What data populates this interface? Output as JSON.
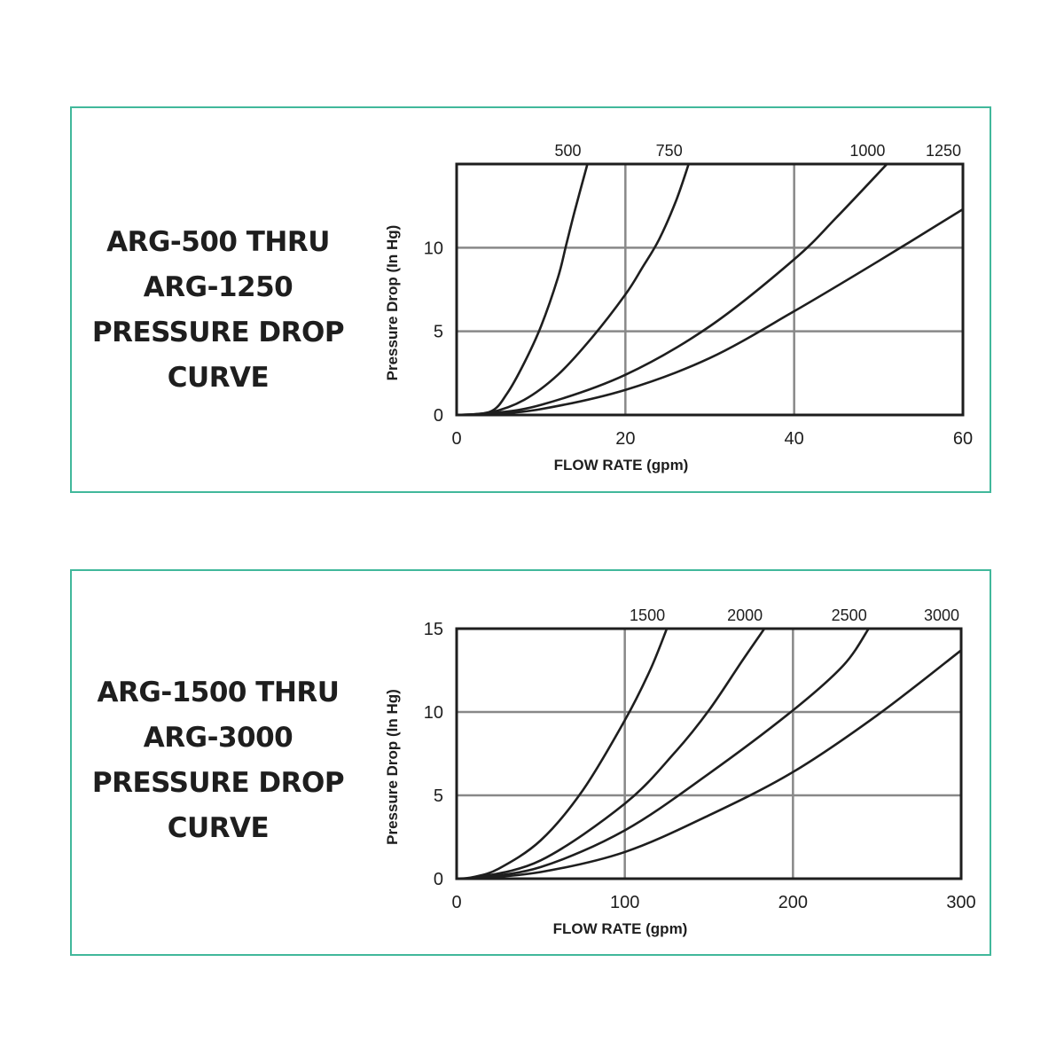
{
  "panels": [
    {
      "title_lines": [
        "ARG-500 THRU",
        "ARG-1250",
        "PRESSURE DROP",
        "CURVE"
      ],
      "accent_color": "#41b89b"
    },
    {
      "title_lines": [
        "ARG-1500 THRU",
        "ARG-3000",
        "PRESSURE DROP",
        "CURVE"
      ],
      "accent_color": "#41b89b"
    }
  ],
  "chart_data": [
    {
      "type": "line",
      "title": "ARG-500 THRU ARG-1250 PRESSURE DROP CURVE",
      "xlabel": "FLOW RATE (gpm)",
      "ylabel": "Pressure Drop (In Hg)",
      "xlim": [
        0,
        60
      ],
      "ylim": [
        0,
        15
      ],
      "xticks": [
        0,
        20,
        40,
        60
      ],
      "yticks": [
        0,
        5,
        10
      ],
      "grid": true,
      "series": [
        {
          "name": "500",
          "x": [
            0,
            4,
            6,
            8,
            10,
            12,
            13,
            14,
            15.5
          ],
          "y": [
            0,
            0.2,
            1.3,
            3.1,
            5.3,
            8.2,
            10.2,
            12.2,
            15
          ]
        },
        {
          "name": "750",
          "x": [
            0,
            4,
            8,
            12,
            16,
            20,
            22,
            24,
            26,
            27.5
          ],
          "y": [
            0,
            0.15,
            0.9,
            2.4,
            4.6,
            7.2,
            8.8,
            10.5,
            12.8,
            15
          ]
        },
        {
          "name": "1000",
          "x": [
            0,
            4,
            10,
            20,
            30,
            40,
            45,
            51
          ],
          "y": [
            0,
            0.1,
            0.6,
            2.4,
            5.3,
            9.3,
            11.8,
            15
          ]
        },
        {
          "name": "1250",
          "x": [
            0,
            4,
            10,
            20,
            30,
            40,
            50,
            60
          ],
          "y": [
            0,
            0.05,
            0.35,
            1.5,
            3.4,
            6.2,
            9.2,
            12.3
          ]
        }
      ]
    },
    {
      "type": "line",
      "title": "ARG-1500 THRU ARG-3000 PRESSURE DROP CURVE",
      "xlabel": "FLOW RATE (gpm)",
      "ylabel": "Pressure Drop (In Hg)",
      "xlim": [
        0,
        300
      ],
      "ylim": [
        0,
        15
      ],
      "xticks": [
        0,
        100,
        200,
        300
      ],
      "yticks": [
        0,
        5,
        10,
        15
      ],
      "grid": true,
      "series": [
        {
          "name": "1500",
          "x": [
            0,
            10,
            25,
            50,
            75,
            100,
            115,
            125
          ],
          "y": [
            0,
            0.1,
            0.6,
            2.3,
            5.3,
            9.5,
            12.5,
            15
          ]
        },
        {
          "name": "2000",
          "x": [
            0,
            10,
            50,
            100,
            130,
            150,
            170,
            183
          ],
          "y": [
            0,
            0.05,
            1.1,
            4.5,
            7.6,
            10.1,
            13.1,
            15
          ]
        },
        {
          "name": "2500",
          "x": [
            0,
            10,
            50,
            100,
            150,
            200,
            230,
            245
          ],
          "y": [
            0,
            0.03,
            0.7,
            2.9,
            6.3,
            10.1,
            12.8,
            15
          ]
        },
        {
          "name": "3000",
          "x": [
            0,
            10,
            50,
            100,
            150,
            200,
            250,
            300
          ],
          "y": [
            0,
            0.02,
            0.4,
            1.6,
            3.8,
            6.4,
            9.8,
            13.7
          ]
        }
      ]
    }
  ]
}
